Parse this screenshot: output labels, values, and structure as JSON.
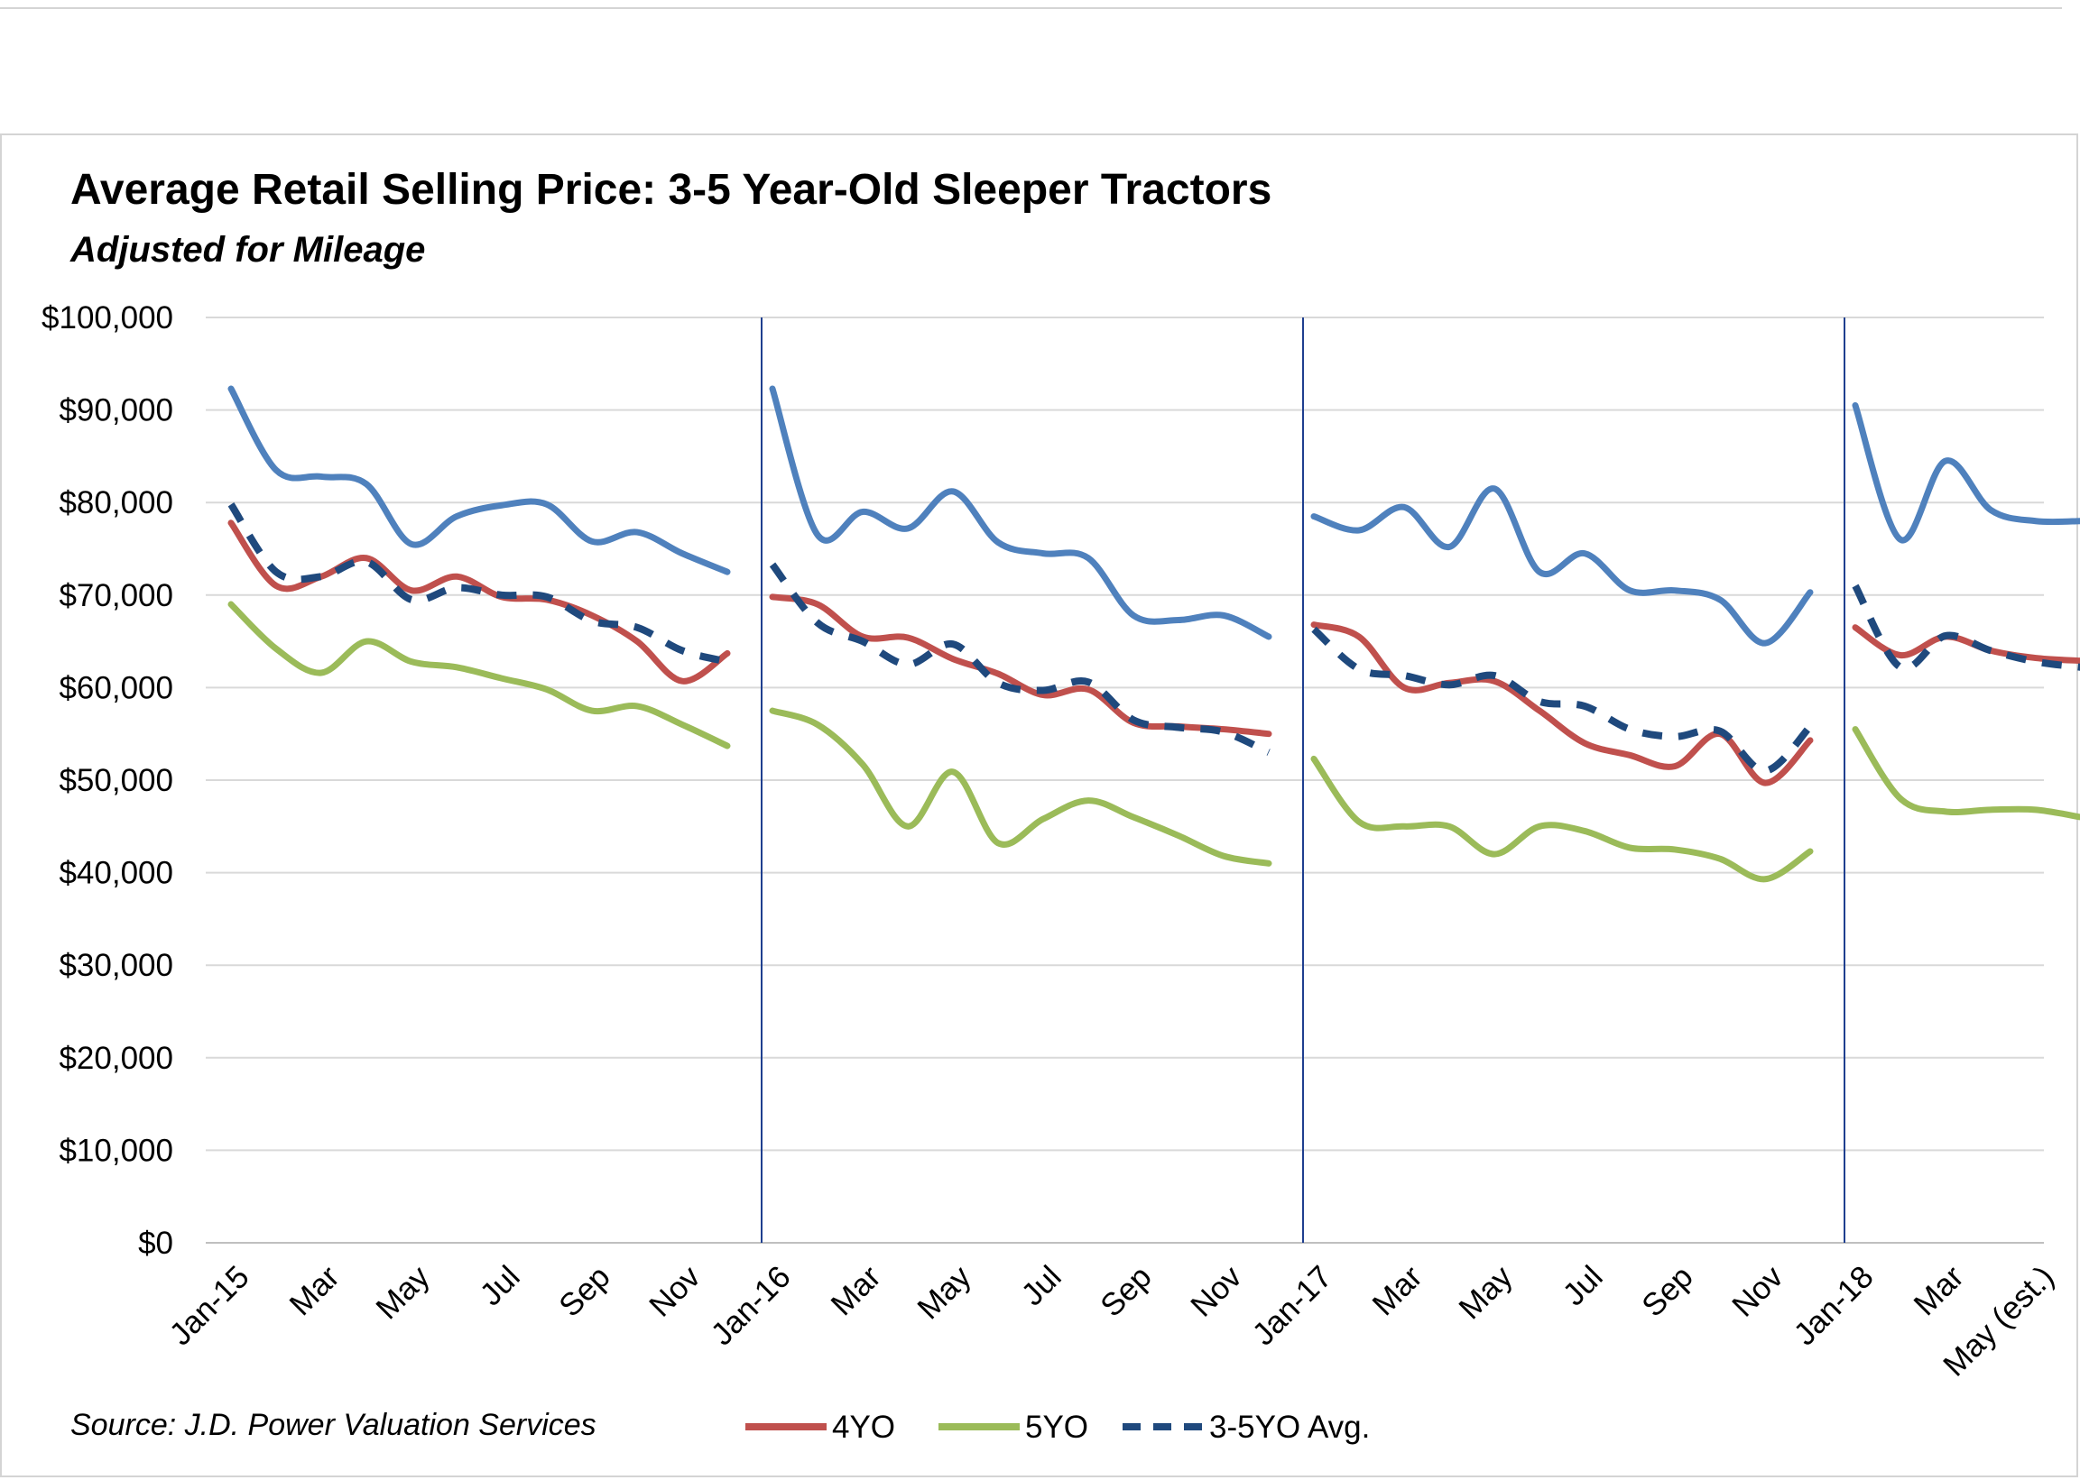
{
  "chart_data": {
    "type": "line",
    "title": "Average Retail Selling Price: 3-5 Year-Old Sleeper Tractors",
    "subtitle": "Adjusted for Mileage",
    "source": "Source: J.D. Power Valuation Services",
    "ylim": [
      0,
      100000
    ],
    "yticks": [
      "$0",
      "$10,000",
      "$20,000",
      "$30,000",
      "$40,000",
      "$50,000",
      "$60,000",
      "$70,000",
      "$80,000",
      "$90,000",
      "$100,000"
    ],
    "xticks": [
      {
        "label": "Jan-15",
        "month": 0
      },
      {
        "label": "Mar",
        "month": 2
      },
      {
        "label": "May",
        "month": 4
      },
      {
        "label": "Jul",
        "month": 6
      },
      {
        "label": "Sep",
        "month": 8
      },
      {
        "label": "Nov",
        "month": 10
      },
      {
        "label": "Jan-16",
        "month": 12
      },
      {
        "label": "Mar",
        "month": 14
      },
      {
        "label": "May",
        "month": 16
      },
      {
        "label": "Jul",
        "month": 18
      },
      {
        "label": "Sep",
        "month": 20
      },
      {
        "label": "Nov",
        "month": 22
      },
      {
        "label": "Jan-17",
        "month": 24
      },
      {
        "label": "Mar",
        "month": 26
      },
      {
        "label": "May",
        "month": 28
      },
      {
        "label": "Jul",
        "month": 30
      },
      {
        "label": "Sep",
        "month": 32
      },
      {
        "label": "Nov",
        "month": 34
      },
      {
        "label": "Jan-18",
        "month": 36
      },
      {
        "label": "Mar",
        "month": 38
      },
      {
        "label": "May (est.)",
        "month": 40
      }
    ],
    "year_dividers": [
      12,
      24,
      36
    ],
    "grid": true,
    "legend_position": "bottom",
    "series": [
      {
        "name": "",
        "color": "#4f81bd",
        "dash": false,
        "segments": [
          {
            "start_month": 0,
            "values": [
              92300,
              83500,
              82800,
              82000,
              75500,
              78500,
              79700,
              79800,
              75800,
              76800,
              74500,
              72500
            ]
          },
          {
            "start_month": 12,
            "values": [
              92300,
              76500,
              79000,
              77200,
              81200,
              75700,
              74500,
              74000,
              67800,
              67300,
              67800,
              65500
            ]
          },
          {
            "start_month": 24,
            "values": [
              78500,
              77000,
              79500,
              75200,
              81500,
              72500,
              74500,
              70500,
              70500,
              69500,
              64800,
              70300
            ]
          },
          {
            "start_month": 36,
            "values": [
              90500,
              76000,
              84500,
              79200,
              78000,
              78000
            ]
          }
        ]
      },
      {
        "name": "4YO",
        "color": "#c0504d",
        "dash": false,
        "segments": [
          {
            "start_month": 0,
            "values": [
              77800,
              71000,
              72000,
              74000,
              70500,
              72000,
              69800,
              69500,
              67800,
              65000,
              60700,
              63700
            ]
          },
          {
            "start_month": 12,
            "values": [
              69800,
              69000,
              65500,
              65400,
              63100,
              61500,
              59200,
              59800,
              56200,
              55800,
              55500,
              55000
            ]
          },
          {
            "start_month": 24,
            "values": [
              66800,
              65500,
              60000,
              60500,
              60700,
              57500,
              54000,
              52700,
              51500,
              55000,
              49700,
              54300
            ]
          },
          {
            "start_month": 36,
            "values": [
              66500,
              63500,
              65500,
              64000,
              63200,
              62900
            ]
          }
        ]
      },
      {
        "name": "5YO",
        "color": "#9bbb59",
        "dash": false,
        "segments": [
          {
            "start_month": 0,
            "values": [
              69000,
              64200,
              61600,
              65000,
              62800,
              62200,
              61000,
              59800,
              57500,
              58000,
              56000,
              53700
            ]
          },
          {
            "start_month": 12,
            "values": [
              57500,
              56000,
              51700,
              45000,
              50900,
              43200,
              45800,
              47800,
              46000,
              44000,
              41800,
              41000
            ]
          },
          {
            "start_month": 24,
            "values": [
              52300,
              45500,
              45000,
              45000,
              42000,
              45000,
              44500,
              42700,
              42500,
              41500,
              39300,
              42300
            ]
          },
          {
            "start_month": 36,
            "values": [
              55500,
              48000,
              46600,
              46800,
              46800,
              46000
            ]
          }
        ]
      },
      {
        "name": "3-5YO Avg.",
        "color": "#1f497d",
        "dash": true,
        "segments": [
          {
            "start_month": 0,
            "values": [
              79800,
              72500,
              72000,
              73600,
              69500,
              70800,
              70000,
              69800,
              67200,
              66500,
              64000,
              62800
            ]
          },
          {
            "start_month": 12,
            "values": [
              73300,
              67000,
              65000,
              62500,
              64700,
              60500,
              59700,
              60600,
              56500,
              55700,
              55200,
              53000
            ]
          },
          {
            "start_month": 24,
            "values": [
              66300,
              62000,
              61300,
              60300,
              61300,
              58500,
              58000,
              55500,
              54700,
              55300,
              51000,
              55800
            ]
          },
          {
            "start_month": 36,
            "values": [
              71000,
              62200,
              65600,
              64000,
              62800,
              62200
            ]
          }
        ]
      }
    ]
  }
}
